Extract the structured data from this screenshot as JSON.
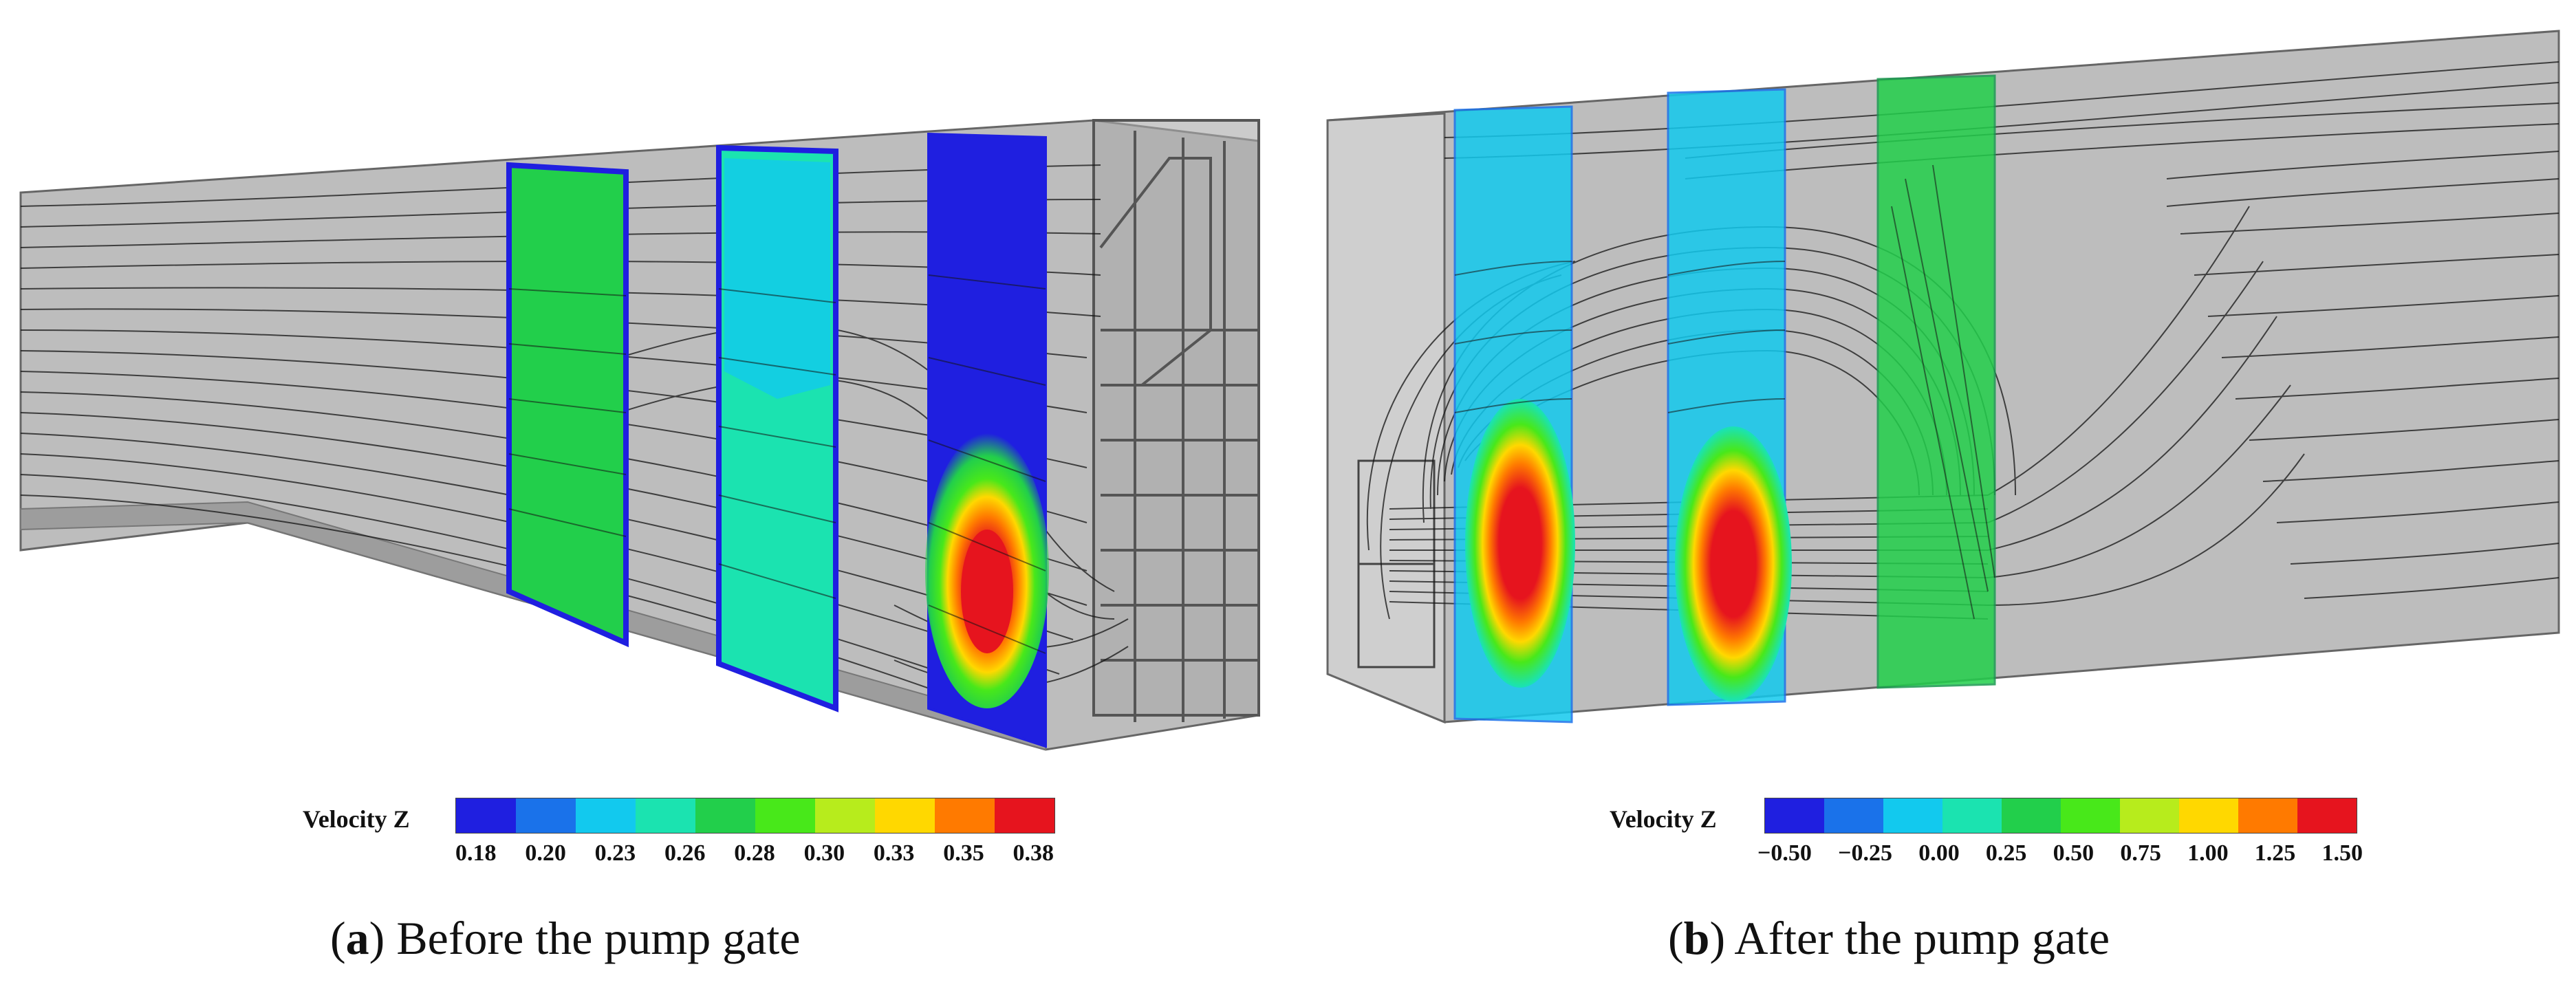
{
  "panels": [
    {
      "id": "a",
      "caption_letter": "a",
      "caption_text": "Before the pump gate",
      "legend": {
        "title": "Velocity Z",
        "ticks": [
          "0.18",
          "0.20",
          "0.23",
          "0.26",
          "0.28",
          "0.30",
          "0.33",
          "0.35",
          "0.38"
        ]
      }
    },
    {
      "id": "b",
      "caption_letter": "b",
      "caption_text": "After the pump gate",
      "legend": {
        "title": "Velocity Z",
        "ticks": [
          "−0.50",
          "−0.25",
          "0.00",
          "0.25",
          "0.50",
          "0.75",
          "1.00",
          "1.25",
          "1.50"
        ]
      }
    }
  ],
  "colormap": [
    "#1f1fe0",
    "#1a72ea",
    "#12c9ee",
    "#1be3b0",
    "#22cf4b",
    "#48e81a",
    "#b7ec1c",
    "#ffd800",
    "#ff7a00",
    "#e6141e"
  ],
  "colors": {
    "channel_fill": "#b9b9b9",
    "channel_edge": "#5a5a5a",
    "streamline": "#141414"
  }
}
